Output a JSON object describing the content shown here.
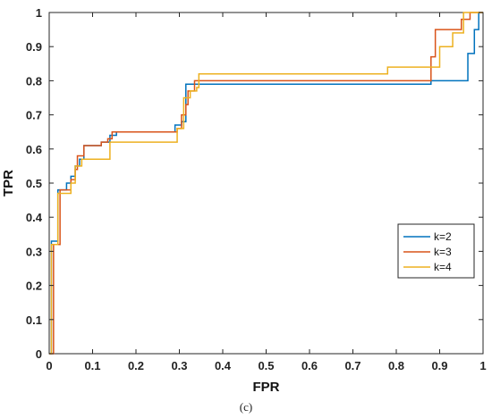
{
  "chart_data": {
    "type": "line",
    "xlabel": "FPR",
    "ylabel": "TPR",
    "xlim": [
      0,
      1
    ],
    "ylim": [
      0,
      1
    ],
    "xticks": [
      0,
      0.1,
      0.2,
      0.3,
      0.4,
      0.5,
      0.6,
      0.7,
      0.8,
      0.9,
      1
    ],
    "yticks": [
      0,
      0.1,
      0.2,
      0.3,
      0.4,
      0.5,
      0.6,
      0.7,
      0.8,
      0.9,
      1
    ],
    "tick_labels_x": [
      "0",
      "0.1",
      "0.2",
      "0.3",
      "0.4",
      "0.5",
      "0.6",
      "0.7",
      "0.8",
      "0.9",
      "1"
    ],
    "tick_labels_y": [
      "0",
      "0.1",
      "0.2",
      "0.3",
      "0.4",
      "0.5",
      "0.6",
      "0.7",
      "0.8",
      "0.9",
      "1"
    ],
    "grid": false,
    "legend_position": "lower-right",
    "series": [
      {
        "name": "k=2",
        "color": "#0072BD",
        "points": [
          [
            0,
            0
          ],
          [
            0.005,
            0
          ],
          [
            0.005,
            0.33
          ],
          [
            0.02,
            0.33
          ],
          [
            0.02,
            0.48
          ],
          [
            0.04,
            0.48
          ],
          [
            0.04,
            0.5
          ],
          [
            0.05,
            0.5
          ],
          [
            0.05,
            0.52
          ],
          [
            0.06,
            0.52
          ],
          [
            0.06,
            0.55
          ],
          [
            0.07,
            0.55
          ],
          [
            0.07,
            0.57
          ],
          [
            0.08,
            0.57
          ],
          [
            0.08,
            0.61
          ],
          [
            0.12,
            0.61
          ],
          [
            0.12,
            0.62
          ],
          [
            0.14,
            0.62
          ],
          [
            0.14,
            0.64
          ],
          [
            0.155,
            0.64
          ],
          [
            0.155,
            0.65
          ],
          [
            0.29,
            0.65
          ],
          [
            0.29,
            0.67
          ],
          [
            0.305,
            0.67
          ],
          [
            0.305,
            0.68
          ],
          [
            0.315,
            0.68
          ],
          [
            0.315,
            0.79
          ],
          [
            0.88,
            0.79
          ],
          [
            0.88,
            0.8
          ],
          [
            0.965,
            0.8
          ],
          [
            0.965,
            0.88
          ],
          [
            0.98,
            0.88
          ],
          [
            0.98,
            0.95
          ],
          [
            0.99,
            0.95
          ],
          [
            0.99,
            1
          ],
          [
            1,
            1
          ]
        ]
      },
      {
        "name": "k=3",
        "color": "#D95319",
        "points": [
          [
            0,
            0
          ],
          [
            0.01,
            0
          ],
          [
            0.01,
            0.32
          ],
          [
            0.025,
            0.32
          ],
          [
            0.025,
            0.48
          ],
          [
            0.05,
            0.48
          ],
          [
            0.05,
            0.51
          ],
          [
            0.06,
            0.51
          ],
          [
            0.06,
            0.54
          ],
          [
            0.065,
            0.54
          ],
          [
            0.065,
            0.58
          ],
          [
            0.08,
            0.58
          ],
          [
            0.08,
            0.61
          ],
          [
            0.12,
            0.61
          ],
          [
            0.12,
            0.62
          ],
          [
            0.135,
            0.62
          ],
          [
            0.135,
            0.63
          ],
          [
            0.145,
            0.63
          ],
          [
            0.145,
            0.65
          ],
          [
            0.295,
            0.65
          ],
          [
            0.295,
            0.66
          ],
          [
            0.305,
            0.66
          ],
          [
            0.305,
            0.7
          ],
          [
            0.315,
            0.7
          ],
          [
            0.315,
            0.73
          ],
          [
            0.32,
            0.73
          ],
          [
            0.32,
            0.77
          ],
          [
            0.335,
            0.77
          ],
          [
            0.335,
            0.8
          ],
          [
            0.88,
            0.8
          ],
          [
            0.88,
            0.87
          ],
          [
            0.89,
            0.87
          ],
          [
            0.89,
            0.95
          ],
          [
            0.95,
            0.95
          ],
          [
            0.95,
            0.98
          ],
          [
            0.97,
            0.98
          ],
          [
            0.97,
            1
          ],
          [
            1,
            1
          ]
        ]
      },
      {
        "name": "k=4",
        "color": "#EDB120",
        "points": [
          [
            0,
            0
          ],
          [
            0.005,
            0
          ],
          [
            0.005,
            0.32
          ],
          [
            0.02,
            0.32
          ],
          [
            0.02,
            0.47
          ],
          [
            0.05,
            0.47
          ],
          [
            0.05,
            0.5
          ],
          [
            0.06,
            0.5
          ],
          [
            0.06,
            0.55
          ],
          [
            0.075,
            0.55
          ],
          [
            0.075,
            0.57
          ],
          [
            0.14,
            0.57
          ],
          [
            0.14,
            0.62
          ],
          [
            0.295,
            0.62
          ],
          [
            0.295,
            0.66
          ],
          [
            0.31,
            0.66
          ],
          [
            0.31,
            0.75
          ],
          [
            0.325,
            0.75
          ],
          [
            0.325,
            0.77
          ],
          [
            0.34,
            0.77
          ],
          [
            0.34,
            0.78
          ],
          [
            0.345,
            0.78
          ],
          [
            0.345,
            0.82
          ],
          [
            0.78,
            0.82
          ],
          [
            0.78,
            0.84
          ],
          [
            0.9,
            0.84
          ],
          [
            0.9,
            0.9
          ],
          [
            0.93,
            0.9
          ],
          [
            0.93,
            0.94
          ],
          [
            0.955,
            0.94
          ],
          [
            0.955,
            1
          ],
          [
            1,
            1
          ]
        ]
      }
    ]
  },
  "caption": "(c)"
}
